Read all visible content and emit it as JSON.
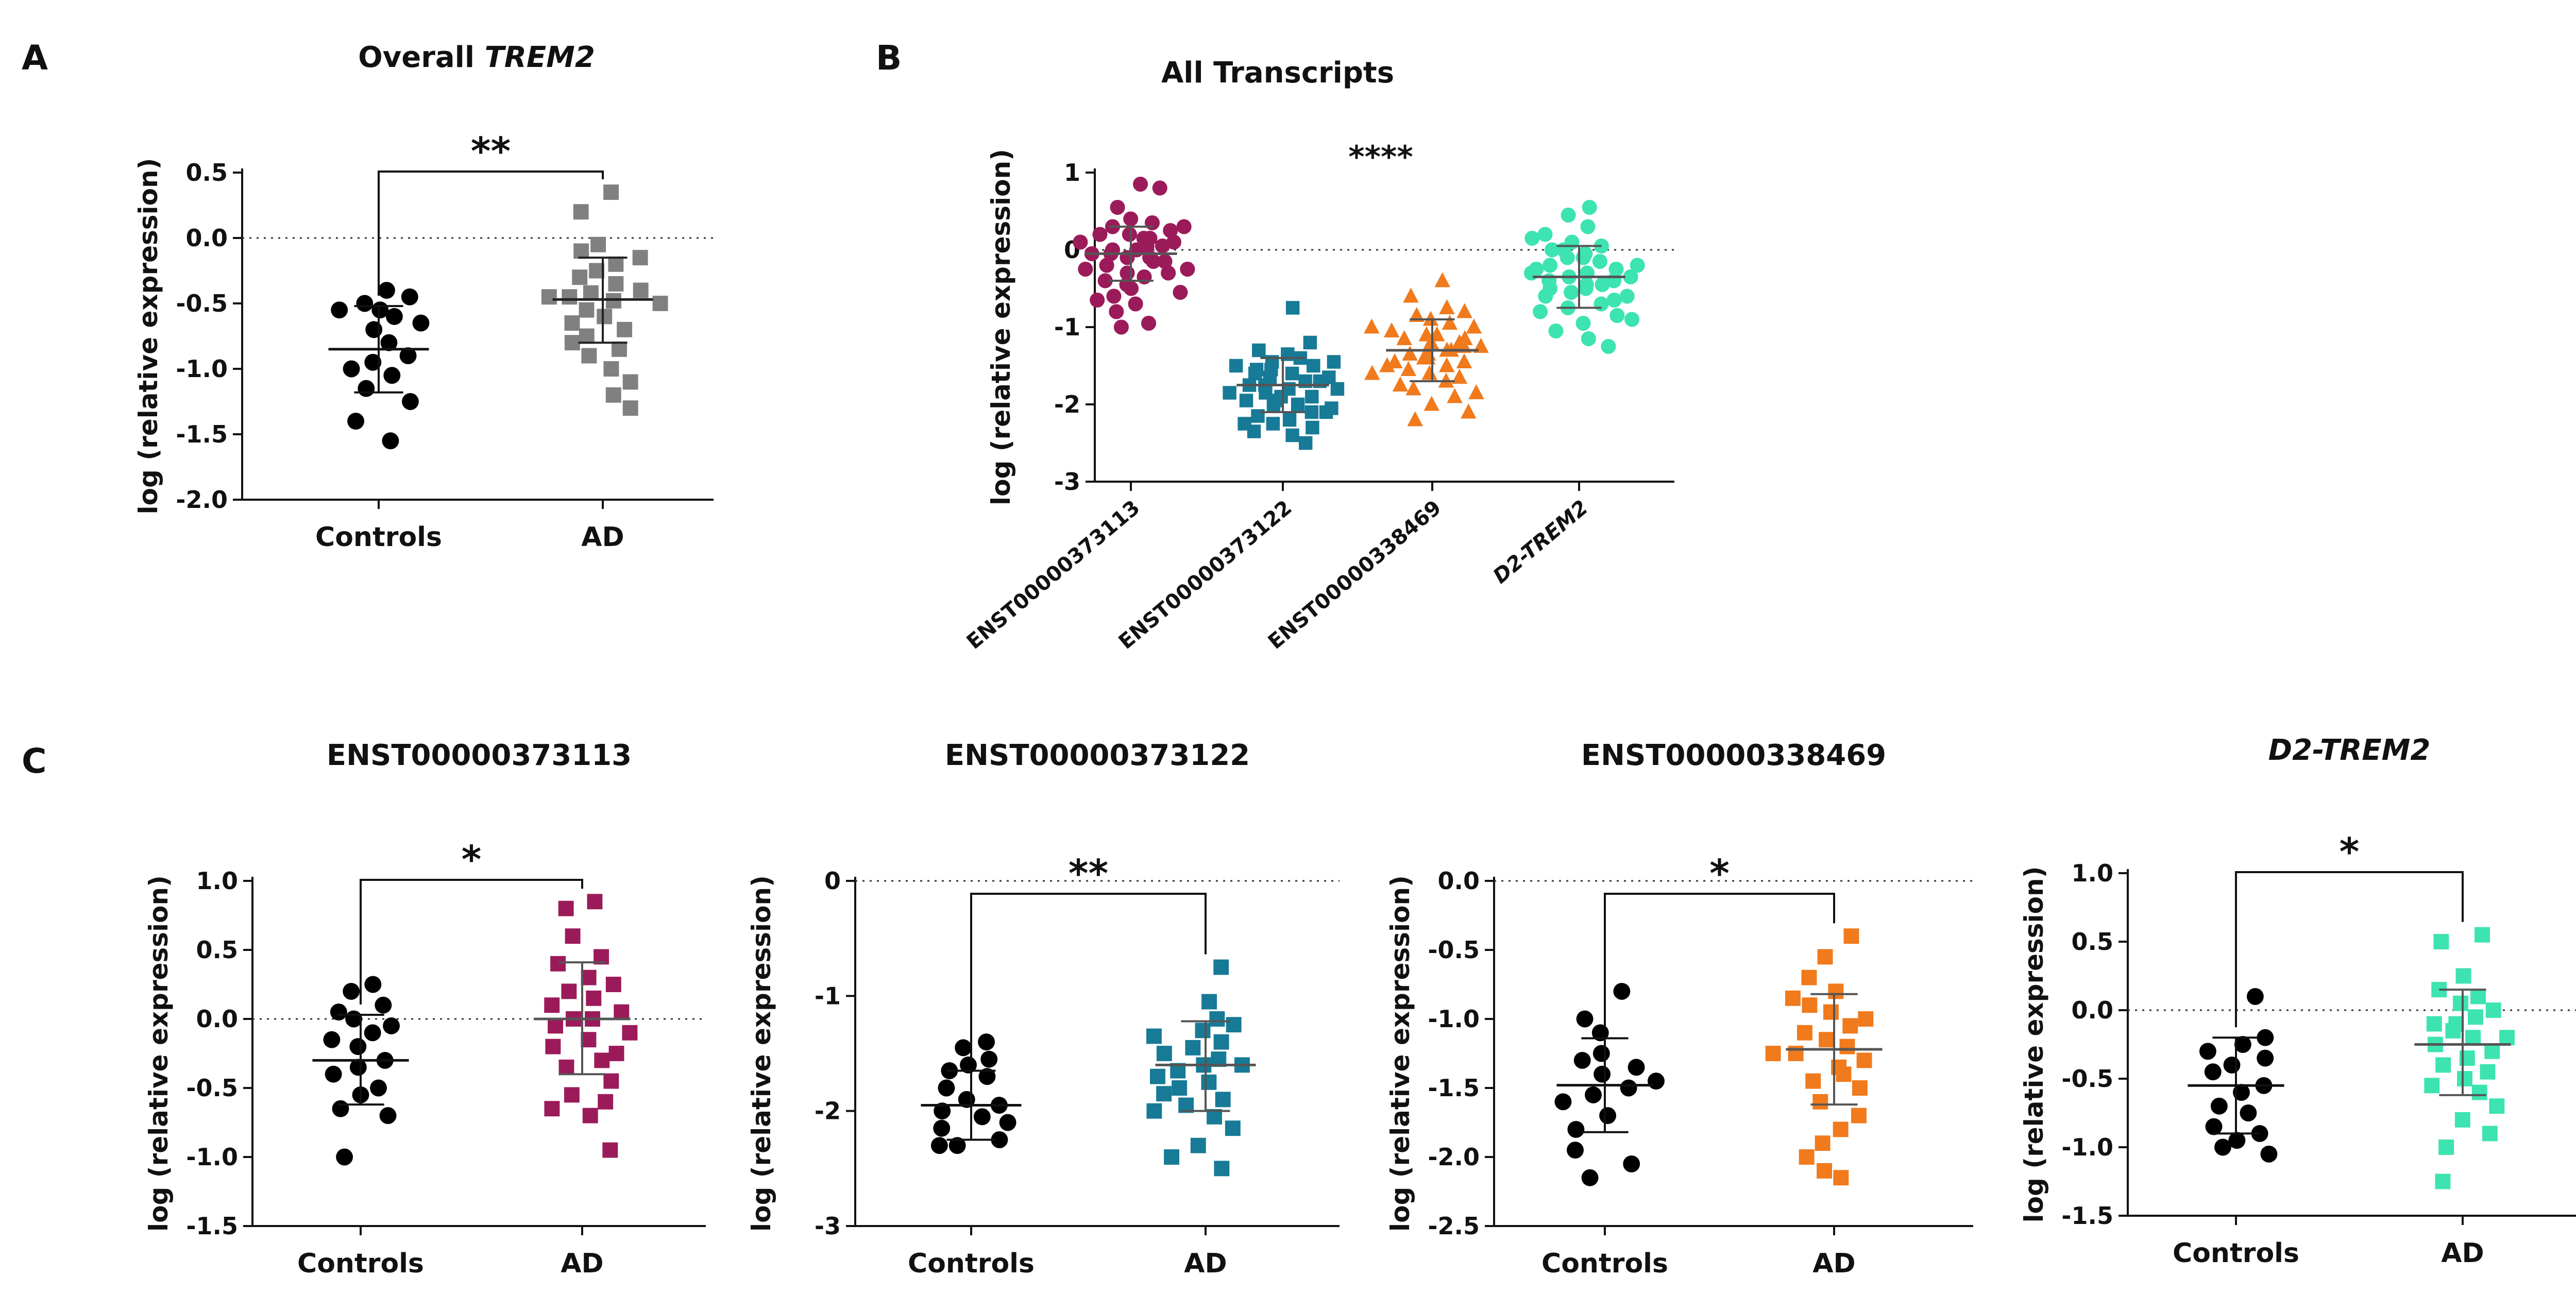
{
  "panel_labels": [
    "A",
    "B",
    "C"
  ],
  "chart_data": [
    {
      "id": "A",
      "type": "scatter",
      "title": "Overall ",
      "title_italic": "TREM2",
      "ylabel": "log (relative expression)",
      "ylim": [
        -2.0,
        0.5
      ],
      "yticks": [
        0.5,
        0.0,
        -0.5,
        -1.0,
        -1.5,
        -2.0
      ],
      "ytick_labels": [
        "0.5",
        "0.0",
        "-0.5",
        "-1.0",
        "-1.5",
        "-2.0"
      ],
      "reference_line": 0,
      "categories": [
        "Controls",
        "AD"
      ],
      "significance": "**",
      "significance_pair": [
        0,
        1
      ],
      "series": [
        {
          "name": "Controls",
          "color": "#000000",
          "marker": "circle",
          "mean": -0.85,
          "sd_low": -1.18,
          "sd_high": -0.52,
          "values": [
            -0.4,
            -0.45,
            -0.5,
            -0.55,
            -0.55,
            -0.6,
            -0.65,
            -0.7,
            -0.8,
            -0.9,
            -0.95,
            -1.0,
            -1.05,
            -1.15,
            -1.25,
            -1.4,
            -1.55
          ]
        },
        {
          "name": "AD",
          "color": "#808080",
          "marker": "square",
          "mean": -0.47,
          "sd_low": -0.8,
          "sd_high": -0.15,
          "values": [
            0.35,
            0.2,
            -0.05,
            -0.1,
            -0.15,
            -0.2,
            -0.25,
            -0.3,
            -0.35,
            -0.4,
            -0.42,
            -0.45,
            -0.45,
            -0.48,
            -0.5,
            -0.55,
            -0.6,
            -0.65,
            -0.7,
            -0.75,
            -0.8,
            -0.85,
            -0.9,
            -1.0,
            -1.1,
            -1.2,
            -1.3
          ]
        }
      ]
    },
    {
      "id": "B",
      "type": "scatter",
      "title": "All Transcripts",
      "ylabel": "log (relative expression)",
      "ylim": [
        -3,
        1
      ],
      "yticks": [
        1,
        0,
        -1,
        -2,
        -3
      ],
      "ytick_labels": [
        "1",
        "0",
        "-1",
        "-2",
        "-3"
      ],
      "reference_line": 0,
      "categories": [
        "ENST00000373113",
        "ENST00000373122",
        "ENST00000338469",
        "D2-TREM2"
      ],
      "italic_categories": [
        false,
        false,
        false,
        true
      ],
      "significance": "****",
      "series": [
        {
          "name": "ENST00000373113",
          "color": "#9b1b5a",
          "marker": "circle",
          "mean": -0.05,
          "sd_low": -0.4,
          "sd_high": 0.3,
          "values": [
            0.85,
            0.8,
            0.55,
            0.4,
            0.35,
            0.3,
            0.25,
            0.2,
            0.15,
            0.1,
            0.05,
            0.0,
            0.0,
            -0.05,
            -0.1,
            -0.1,
            -0.15,
            -0.2,
            -0.25,
            -0.3,
            -0.35,
            -0.4,
            -0.5,
            -0.6,
            -0.7,
            -0.8,
            -0.95,
            -1.0,
            0.1,
            -0.05,
            0.2,
            -0.3,
            -0.45,
            0.05,
            -0.15,
            0.3,
            -0.55,
            -0.25,
            0.15,
            -0.65
          ]
        },
        {
          "name": "ENST00000373122",
          "color": "#177a96",
          "marker": "square",
          "mean": -1.75,
          "sd_low": -2.1,
          "sd_high": -1.4,
          "values": [
            -0.75,
            -1.2,
            -1.3,
            -1.35,
            -1.4,
            -1.45,
            -1.5,
            -1.55,
            -1.6,
            -1.65,
            -1.7,
            -1.75,
            -1.8,
            -1.85,
            -1.9,
            -1.95,
            -2.0,
            -2.05,
            -2.1,
            -2.15,
            -2.2,
            -2.25,
            -2.3,
            -2.4,
            -2.5,
            -1.6,
            -1.7,
            -1.8,
            -1.9,
            -2.0,
            -1.5,
            -2.1,
            -1.85,
            -1.65,
            -2.25,
            -1.45,
            -1.95,
            -1.75,
            -2.35,
            -1.55
          ]
        },
        {
          "name": "ENST00000338469",
          "color": "#f07a1c",
          "marker": "triangle",
          "mean": -1.3,
          "sd_low": -1.7,
          "sd_high": -0.9,
          "values": [
            -0.4,
            -0.6,
            -0.75,
            -0.85,
            -0.9,
            -0.95,
            -1.0,
            -1.05,
            -1.1,
            -1.15,
            -1.2,
            -1.25,
            -1.3,
            -1.35,
            -1.4,
            -1.45,
            -1.5,
            -1.55,
            -1.6,
            -1.65,
            -1.7,
            -1.8,
            -1.9,
            -2.0,
            -2.1,
            -2.2,
            -1.2,
            -1.3,
            -1.4,
            -1.5,
            -1.1,
            -1.6,
            -1.25,
            -1.35,
            -1.75,
            -1.0,
            -1.45,
            -1.15,
            -1.85,
            -0.8
          ]
        },
        {
          "name": "D2-TREM2",
          "color": "#3de3b0",
          "marker": "circle",
          "mean": -0.35,
          "sd_low": -0.75,
          "sd_high": 0.05,
          "values": [
            0.55,
            0.45,
            0.3,
            0.2,
            0.1,
            0.05,
            0.0,
            -0.05,
            -0.1,
            -0.15,
            -0.2,
            -0.25,
            -0.3,
            -0.35,
            -0.4,
            -0.45,
            -0.5,
            -0.55,
            -0.6,
            -0.65,
            -0.7,
            -0.75,
            -0.85,
            -0.95,
            -1.05,
            -1.15,
            -1.25,
            -0.3,
            -0.4,
            -0.2,
            -0.5,
            -0.1,
            -0.6,
            -0.35,
            0.15,
            -0.8,
            -0.25,
            -0.45,
            -0.9,
            0.0
          ]
        }
      ]
    },
    {
      "id": "C1",
      "type": "scatter",
      "title": "ENST00000373113",
      "ylabel": "log (relative expression)",
      "ylim": [
        -1.5,
        1.0
      ],
      "yticks": [
        1.0,
        0.5,
        0.0,
        -0.5,
        -1.0,
        -1.5
      ],
      "ytick_labels": [
        "1.0",
        "0.5",
        "0.0",
        "-0.5",
        "-1.0",
        "-1.5"
      ],
      "reference_line": 0,
      "categories": [
        "Controls",
        "AD"
      ],
      "significance": "*",
      "significance_pair": [
        0,
        1
      ],
      "series": [
        {
          "name": "Controls",
          "color": "#000000",
          "marker": "circle",
          "mean": -0.3,
          "sd_low": -0.62,
          "sd_high": 0.03,
          "values": [
            0.25,
            0.2,
            0.1,
            0.05,
            0.0,
            -0.05,
            -0.1,
            -0.15,
            -0.2,
            -0.3,
            -0.35,
            -0.4,
            -0.5,
            -0.55,
            -0.65,
            -0.7,
            -1.0
          ]
        },
        {
          "name": "AD",
          "color": "#9b1b5a",
          "marker": "square",
          "mean": 0.0,
          "sd_low": -0.4,
          "sd_high": 0.41,
          "values": [
            0.85,
            0.8,
            0.6,
            0.45,
            0.4,
            0.3,
            0.25,
            0.2,
            0.15,
            0.1,
            0.05,
            0.0,
            0.0,
            -0.05,
            -0.1,
            -0.15,
            -0.2,
            -0.25,
            -0.3,
            -0.35,
            -0.45,
            -0.55,
            -0.6,
            -0.65,
            -0.7,
            -0.95
          ]
        }
      ]
    },
    {
      "id": "C2",
      "type": "scatter",
      "title": "ENST00000373122",
      "ylabel": "log (relative expression)",
      "ylim": [
        -3,
        0
      ],
      "yticks": [
        0,
        -1,
        -2,
        -3
      ],
      "ytick_labels": [
        "0",
        "-1",
        "-2",
        "-3"
      ],
      "reference_line": 0,
      "categories": [
        "Controls",
        "AD"
      ],
      "significance": "**",
      "significance_pair": [
        0,
        1
      ],
      "series": [
        {
          "name": "Controls",
          "color": "#000000",
          "marker": "circle",
          "mean": -1.95,
          "sd_low": -2.25,
          "sd_high": -1.65,
          "values": [
            -1.4,
            -1.45,
            -1.55,
            -1.6,
            -1.65,
            -1.7,
            -1.8,
            -1.9,
            -1.95,
            -2.0,
            -2.05,
            -2.1,
            -2.15,
            -2.25,
            -2.3,
            -2.3
          ]
        },
        {
          "name": "AD",
          "color": "#177a96",
          "marker": "square",
          "mean": -1.6,
          "sd_low": -2.0,
          "sd_high": -1.22,
          "values": [
            -0.75,
            -1.05,
            -1.2,
            -1.25,
            -1.3,
            -1.35,
            -1.4,
            -1.45,
            -1.5,
            -1.55,
            -1.6,
            -1.6,
            -1.65,
            -1.7,
            -1.75,
            -1.8,
            -1.85,
            -1.9,
            -1.95,
            -2.0,
            -2.05,
            -2.15,
            -2.3,
            -2.4,
            -2.5
          ]
        }
      ]
    },
    {
      "id": "C3",
      "type": "scatter",
      "title": "ENST00000338469",
      "ylabel": "log (relative expression)",
      "ylim": [
        -2.5,
        0.0
      ],
      "yticks": [
        0.0,
        -0.5,
        -1.0,
        -1.5,
        -2.0,
        -2.5
      ],
      "ytick_labels": [
        "0.0",
        "-0.5",
        "-1.0",
        "-1.5",
        "-2.0",
        "-2.5"
      ],
      "reference_line": 0,
      "categories": [
        "Controls",
        "AD"
      ],
      "significance": "*",
      "significance_pair": [
        0,
        1
      ],
      "series": [
        {
          "name": "Controls",
          "color": "#000000",
          "marker": "circle",
          "mean": -1.48,
          "sd_low": -1.82,
          "sd_high": -1.14,
          "values": [
            -0.8,
            -1.0,
            -1.1,
            -1.25,
            -1.3,
            -1.35,
            -1.4,
            -1.45,
            -1.5,
            -1.55,
            -1.6,
            -1.7,
            -1.8,
            -1.95,
            -2.05,
            -2.15
          ]
        },
        {
          "name": "AD",
          "color": "#f07a1c",
          "marker": "square",
          "mean": -1.22,
          "sd_low": -1.62,
          "sd_high": -0.82,
          "values": [
            -0.4,
            -0.55,
            -0.7,
            -0.8,
            -0.9,
            -0.95,
            -1.0,
            -1.05,
            -1.1,
            -1.15,
            -1.2,
            -1.25,
            -1.3,
            -1.35,
            -1.4,
            -1.45,
            -1.5,
            -1.6,
            -1.7,
            -1.8,
            -1.9,
            -2.0,
            -2.1,
            -2.15,
            -0.85,
            -1.25
          ]
        }
      ]
    },
    {
      "id": "C4",
      "type": "scatter",
      "title": "D2-TREM2",
      "title_is_italic": true,
      "ylabel": "log (relative expression)",
      "ylim": [
        -1.5,
        1.0
      ],
      "yticks": [
        1.0,
        0.5,
        0.0,
        -0.5,
        -1.0,
        -1.5
      ],
      "ytick_labels": [
        "1.0",
        "0.5",
        "0.0",
        "-0.5",
        "-1.0",
        "-1.5"
      ],
      "reference_line": 0,
      "categories": [
        "Controls",
        "AD"
      ],
      "significance": "*",
      "significance_pair": [
        0,
        1
      ],
      "series": [
        {
          "name": "Controls",
          "color": "#000000",
          "marker": "circle",
          "mean": -0.55,
          "sd_low": -0.9,
          "sd_high": -0.2,
          "values": [
            0.1,
            -0.2,
            -0.25,
            -0.3,
            -0.35,
            -0.4,
            -0.45,
            -0.55,
            -0.6,
            -0.7,
            -0.75,
            -0.85,
            -0.9,
            -0.95,
            -1.0,
            -1.05
          ]
        },
        {
          "name": "AD",
          "color": "#3de3b0",
          "marker": "square",
          "mean": -0.25,
          "sd_low": -0.62,
          "sd_high": 0.15,
          "values": [
            0.55,
            0.5,
            0.25,
            0.15,
            0.1,
            0.05,
            0.0,
            -0.05,
            -0.1,
            -0.15,
            -0.2,
            -0.25,
            -0.3,
            -0.35,
            -0.4,
            -0.45,
            -0.5,
            -0.55,
            -0.6,
            -0.7,
            -0.8,
            -0.9,
            -1.0,
            -1.25,
            -0.2,
            -0.1
          ]
        }
      ]
    }
  ]
}
